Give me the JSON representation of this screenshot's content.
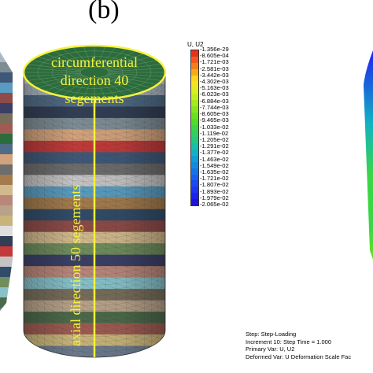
{
  "panel_label": "(b)",
  "annotations": {
    "circumferential_line1": "circumferential",
    "circumferential_line2": "direction 40",
    "circumferential_line3": "segements",
    "axial": "axial direction 50 segements"
  },
  "legend": {
    "title": "U, U2",
    "values": [
      "-1.356e-29",
      "-8.605e-04",
      "-1.721e-03",
      "-2.581e-03",
      "-3.442e-03",
      "-4.302e-03",
      "-5.163e-03",
      "-6.023e-03",
      "-6.884e-03",
      "-7.744e-03",
      "-8.605e-03",
      "-9.465e-03",
      "-1.033e-02",
      "-1.119e-02",
      "-1.205e-02",
      "-1.291e-02",
      "-1.377e-02",
      "-1.463e-02",
      "-1.549e-02",
      "-1.635e-02",
      "-1.721e-02",
      "-1.807e-02",
      "-1.893e-02",
      "-1.979e-02",
      "-2.065e-02"
    ],
    "colors": [
      "#e8331c",
      "#f2591a",
      "#f57d1a",
      "#f8a91b",
      "#fbd51c",
      "#f1e51d",
      "#dcee1c",
      "#c2ee1c",
      "#a5ec1c",
      "#86e71d",
      "#68e21e",
      "#4fdd2a",
      "#3bd646",
      "#30cf63",
      "#24c784",
      "#1abea6",
      "#13b2c2",
      "#109fd4",
      "#128ae0",
      "#1574ea",
      "#185fef",
      "#1b4af2",
      "#1d36f3",
      "#1e22f0",
      "#1c14d6"
    ]
  },
  "colors": {
    "highlight": "#f5f23a",
    "band_colors": [
      "#2c6b3c",
      "#dedede",
      "#aab8c5",
      "#4f6c86",
      "#313e54",
      "#7e8c94",
      "#d2a27c",
      "#c23a3a",
      "#3f5878",
      "#6d6d6d",
      "#c4c4c4",
      "#5a9cbf",
      "#a37b4d",
      "#314c68",
      "#8e4b47",
      "#d0b98d",
      "#6f8d5d",
      "#3a3f66",
      "#b9877a",
      "#87c1c9",
      "#776d5a",
      "#b8a28a",
      "#4c6a4a",
      "#9e5c52",
      "#c8b47a",
      "#6b7a8c"
    ]
  },
  "status_bar": {
    "line1": "Step: Step-Loading",
    "line2": "Increment     10: Step Time =     1.000",
    "line3": "Primary Var: U, U2",
    "line4": "Deformed Var: U   Deformation Scale Fac"
  }
}
